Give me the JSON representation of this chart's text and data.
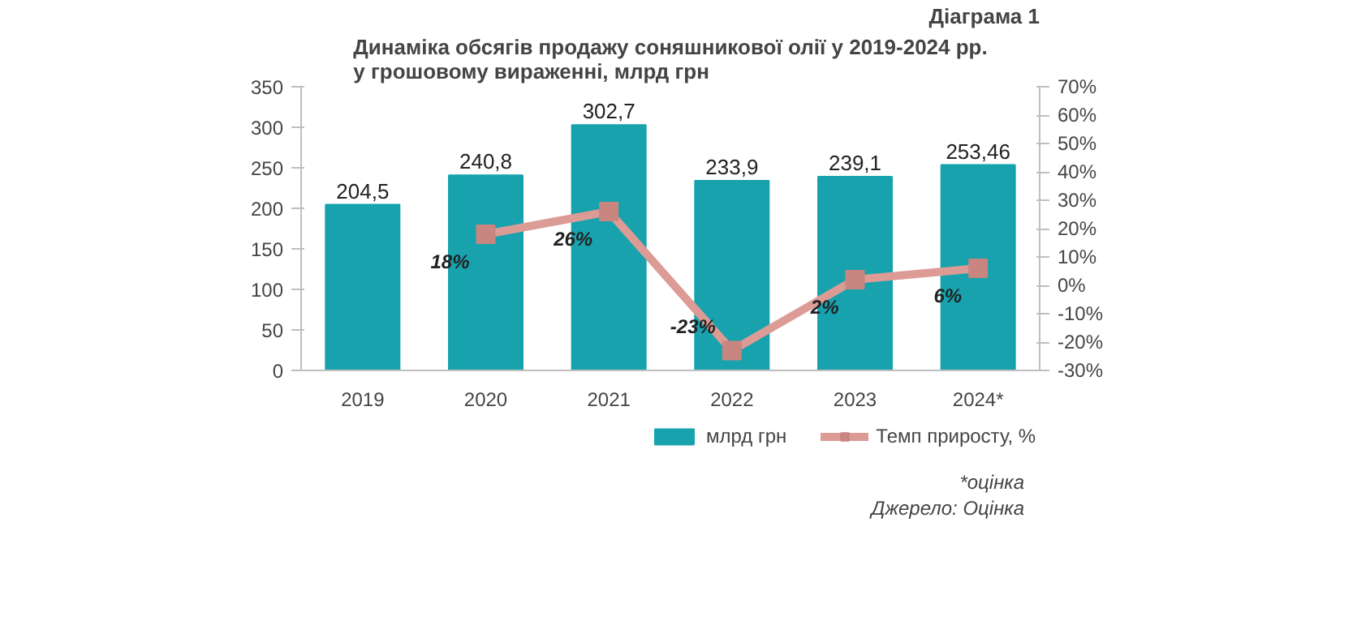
{
  "chart_data": {
    "type": "bar",
    "title": "Динаміка обсягів продажу соняшникової олії у 2019-2024 рр.\nу грошовому вираженні, млрд грн",
    "categories": [
      "2019",
      "2020",
      "2021",
      "2022",
      "2023",
      "2024*"
    ],
    "series": [
      {
        "name": "млрд грн",
        "color": "#17a2ad",
        "values": [
          204.5,
          240.8,
          302.7,
          233.9,
          239.1,
          253.46
        ],
        "value_labels": [
          "204,5",
          "240,8",
          "302,7",
          "233,9",
          "239,1",
          "253,46"
        ]
      },
      {
        "name": "Темп приросту, %",
        "type": "line",
        "axis": "y2",
        "color": "#dc9b95",
        "marker": "square",
        "values": [
          null,
          18,
          26,
          -23,
          2,
          6
        ],
        "value_labels": [
          null,
          "18%",
          "26%",
          "-23%",
          "2%",
          "6%"
        ]
      }
    ],
    "ylim": [
      0,
      350
    ],
    "yticks": [
      0,
      50,
      100,
      150,
      200,
      250,
      300,
      350
    ],
    "y2lim": [
      -30,
      70
    ],
    "y2ticks": [
      {
        "value": -30,
        "label": "-30%"
      },
      {
        "value": -20,
        "label": "-20%"
      },
      {
        "value": -10,
        "label": "-10%"
      },
      {
        "value": 0,
        "label": "0%"
      },
      {
        "value": 10,
        "label": "10%"
      },
      {
        "value": 20,
        "label": "20%"
      },
      {
        "value": 30,
        "label": "30%"
      },
      {
        "value": 40,
        "label": "40%"
      },
      {
        "value": 50,
        "label": "50%"
      },
      {
        "value": 60,
        "label": "60%"
      },
      {
        "value": 70,
        "label": "70%"
      }
    ],
    "grid": false,
    "legend": "bottom",
    "annotations": [
      "Діаграма 1",
      "*оцінка",
      "Джерело: Оцінка"
    ]
  }
}
